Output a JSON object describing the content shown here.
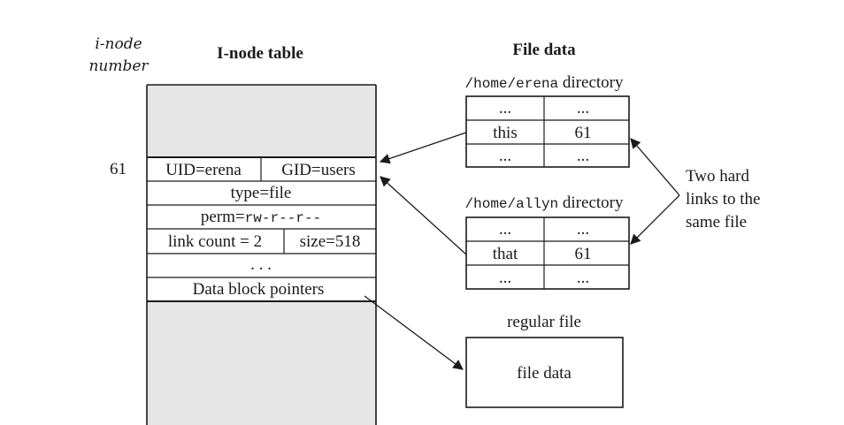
{
  "headers": {
    "inode_number_line1": "i-node",
    "inode_number_line2": "number",
    "inode_table": "I-node table",
    "file_data": "File data"
  },
  "inode": {
    "number": "61",
    "uid": "UID=erena",
    "gid": "GID=users",
    "type": "type=file",
    "perm_prefix": "perm=",
    "perm_value": "rw-r--r--",
    "link_count": "link count = 2",
    "size": "size=518",
    "ellipsis": ". . .",
    "data_block_pointers": "Data block pointers"
  },
  "dir_erena": {
    "path": "/home/erena",
    "suffix": " directory",
    "rows": [
      {
        "name": "...",
        "inode": "..."
      },
      {
        "name": "this",
        "inode": "61"
      },
      {
        "name": "...",
        "inode": "..."
      }
    ]
  },
  "dir_allyn": {
    "path": "/home/allyn",
    "suffix": " directory",
    "rows": [
      {
        "name": "...",
        "inode": "..."
      },
      {
        "name": "that",
        "inode": "61"
      },
      {
        "name": "...",
        "inode": "..."
      }
    ]
  },
  "regular_file": {
    "label": "regular file",
    "content": "file data"
  },
  "annotation": {
    "line1": "Two hard",
    "line2": "links to the",
    "line3": "same file"
  },
  "colors": {
    "shade": "#e6e6e7",
    "stroke": "#1a1a1a"
  }
}
